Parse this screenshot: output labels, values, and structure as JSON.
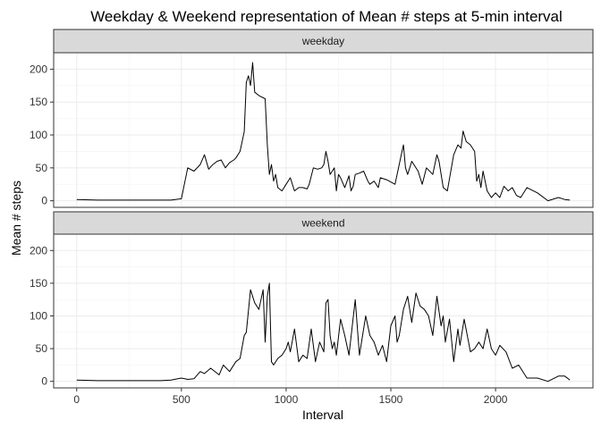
{
  "chart_data": {
    "type": "line",
    "title": "Weekday & Weekend representation of Mean # steps at 5-min interval",
    "xlabel": "Interval",
    "ylabel": "Mean # steps",
    "xlim": [
      -110,
      2465
    ],
    "ylim": [
      -10,
      225
    ],
    "x_ticks": [
      0,
      500,
      1000,
      1500,
      2000
    ],
    "y_ticks": [
      0,
      50,
      100,
      150,
      200
    ],
    "grid": true,
    "panels": [
      {
        "label": "weekday",
        "series": [
          {
            "x": [
              0,
              100,
              200,
              300,
              400,
              450,
              500,
              530,
              560,
              590,
              610,
              630,
              650,
              670,
              690,
              710,
              730,
              750,
              760,
              780,
              800,
              810,
              820,
              830,
              840,
              850,
              870,
              900,
              910,
              920,
              930,
              940,
              950,
              960,
              980,
              1000,
              1020,
              1040,
              1060,
              1080,
              1100,
              1110,
              1130,
              1150,
              1170,
              1180,
              1190,
              1200,
              1210,
              1220,
              1230,
              1240,
              1250,
              1260,
              1280,
              1300,
              1310,
              1320,
              1330,
              1350,
              1370,
              1390,
              1400,
              1420,
              1440,
              1450,
              1480,
              1520,
              1550,
              1560,
              1570,
              1580,
              1600,
              1630,
              1650,
              1670,
              1700,
              1720,
              1730,
              1750,
              1770,
              1800,
              1820,
              1835,
              1845,
              1860,
              1880,
              1900,
              1910,
              1920,
              1930,
              1940,
              1960,
              1980,
              2000,
              2020,
              2040,
              2060,
              2080,
              2100,
              2120,
              2150,
              2200,
              2250,
              2300,
              2330,
              2355
            ],
            "y": [
              2,
              1,
              1,
              1,
              1,
              1,
              3,
              50,
              45,
              55,
              70,
              48,
              55,
              60,
              62,
              50,
              58,
              62,
              65,
              75,
              105,
              180,
              190,
              175,
              210,
              165,
              160,
              155,
              85,
              40,
              55,
              30,
              40,
              20,
              15,
              25,
              35,
              15,
              20,
              20,
              18,
              25,
              50,
              48,
              50,
              55,
              75,
              60,
              40,
              45,
              50,
              15,
              40,
              35,
              20,
              38,
              15,
              22,
              40,
              42,
              45,
              30,
              25,
              30,
              20,
              35,
              32,
              25,
              70,
              85,
              50,
              40,
              60,
              45,
              25,
              50,
              40,
              70,
              60,
              20,
              15,
              70,
              85,
              80,
              106,
              90,
              85,
              75,
              30,
              40,
              20,
              45,
              15,
              5,
              12,
              5,
              22,
              15,
              20,
              8,
              5,
              20,
              12,
              0,
              5,
              2,
              1
            ]
          }
        ]
      },
      {
        "label": "weekend",
        "series": [
          {
            "x": [
              0,
              100,
              200,
              300,
              400,
              450,
              500,
              530,
              560,
              590,
              610,
              640,
              680,
              700,
              730,
              760,
              780,
              800,
              810,
              830,
              850,
              870,
              890,
              900,
              910,
              920,
              930,
              940,
              960,
              980,
              1000,
              1010,
              1020,
              1040,
              1060,
              1080,
              1100,
              1120,
              1140,
              1160,
              1180,
              1190,
              1200,
              1210,
              1220,
              1230,
              1240,
              1260,
              1280,
              1300,
              1330,
              1350,
              1380,
              1400,
              1420,
              1440,
              1460,
              1480,
              1500,
              1520,
              1530,
              1540,
              1560,
              1580,
              1600,
              1620,
              1640,
              1660,
              1680,
              1700,
              1720,
              1740,
              1750,
              1760,
              1780,
              1800,
              1820,
              1830,
              1850,
              1880,
              1900,
              1920,
              1940,
              1960,
              1980,
              2000,
              2020,
              2050,
              2080,
              2110,
              2150,
              2200,
              2250,
              2300,
              2330,
              2355
            ],
            "y": [
              2,
              1,
              1,
              1,
              1,
              2,
              5,
              3,
              4,
              15,
              12,
              20,
              10,
              25,
              15,
              30,
              35,
              70,
              75,
              140,
              120,
              110,
              140,
              60,
              130,
              150,
              30,
              25,
              35,
              40,
              50,
              60,
              45,
              80,
              30,
              40,
              35,
              80,
              30,
              60,
              45,
              120,
              125,
              70,
              50,
              60,
              40,
              95,
              70,
              40,
              125,
              40,
              100,
              70,
              60,
              40,
              55,
              30,
              85,
              100,
              60,
              70,
              110,
              130,
              90,
              135,
              115,
              110,
              100,
              70,
              130,
              85,
              100,
              60,
              95,
              30,
              80,
              55,
              95,
              45,
              50,
              60,
              50,
              80,
              50,
              40,
              55,
              45,
              20,
              25,
              5,
              5,
              0,
              8,
              8,
              2
            ]
          }
        ]
      }
    ]
  }
}
